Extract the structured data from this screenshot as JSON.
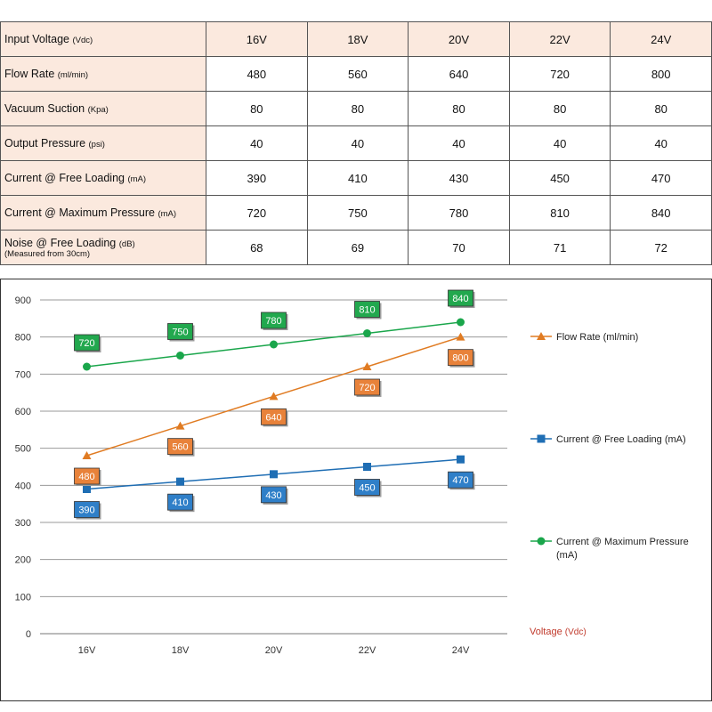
{
  "table": {
    "header": {
      "label": "Input Voltage",
      "unit": "(Vdc)",
      "columns": [
        "16V",
        "18V",
        "20V",
        "22V",
        "24V"
      ]
    },
    "rows": [
      {
        "label": "Flow Rate",
        "unit": "(ml/min)",
        "note": "",
        "values": [
          "480",
          "560",
          "640",
          "720",
          "800"
        ]
      },
      {
        "label": "Vacuum Suction",
        "unit": "(Kpa)",
        "note": "",
        "values": [
          "80",
          "80",
          "80",
          "80",
          "80"
        ]
      },
      {
        "label": "Output Pressure",
        "unit": "(psi)",
        "note": "",
        "values": [
          "40",
          "40",
          "40",
          "40",
          "40"
        ]
      },
      {
        "label": "Current @ Free Loading",
        "unit": "(mA)",
        "note": "",
        "values": [
          "390",
          "410",
          "430",
          "450",
          "470"
        ]
      },
      {
        "label": "Current @ Maximum Pressure",
        "unit": "(mA)",
        "note": "",
        "values": [
          "720",
          "750",
          "780",
          "810",
          "840"
        ]
      },
      {
        "label": "Noise @ Free Loading",
        "unit": "(dB)",
        "note": "(Measured from 30cm)",
        "values": [
          "68",
          "69",
          "70",
          "71",
          "72"
        ]
      }
    ]
  },
  "chart_data": {
    "type": "line",
    "categories": [
      "16V",
      "18V",
      "20V",
      "22V",
      "24V"
    ],
    "ylim": [
      0,
      900
    ],
    "yticks": [
      0,
      100,
      200,
      300,
      400,
      500,
      600,
      700,
      800,
      900
    ],
    "xlabel": "Voltage",
    "xlabel_unit": "(Vdc)",
    "grid": true,
    "legend_position": "right",
    "series": [
      {
        "name": "Flow Rate (ml/min)",
        "values": [
          480,
          560,
          640,
          720,
          800
        ],
        "color": "#e07b22",
        "fill": "#e8823a",
        "marker": "triangle",
        "label_side": "below"
      },
      {
        "name": "Current @ Free Loading (mA)",
        "values": [
          390,
          410,
          430,
          450,
          470
        ],
        "color": "#1f6eb4",
        "fill": "#2f7fc8",
        "marker": "square",
        "label_side": "below"
      },
      {
        "name": "Current @ Maximum Pressure (mA)",
        "values": [
          720,
          750,
          780,
          810,
          840
        ],
        "color": "#1aa64b",
        "fill": "#22a84e",
        "marker": "circle",
        "label_side": "above"
      }
    ]
  }
}
